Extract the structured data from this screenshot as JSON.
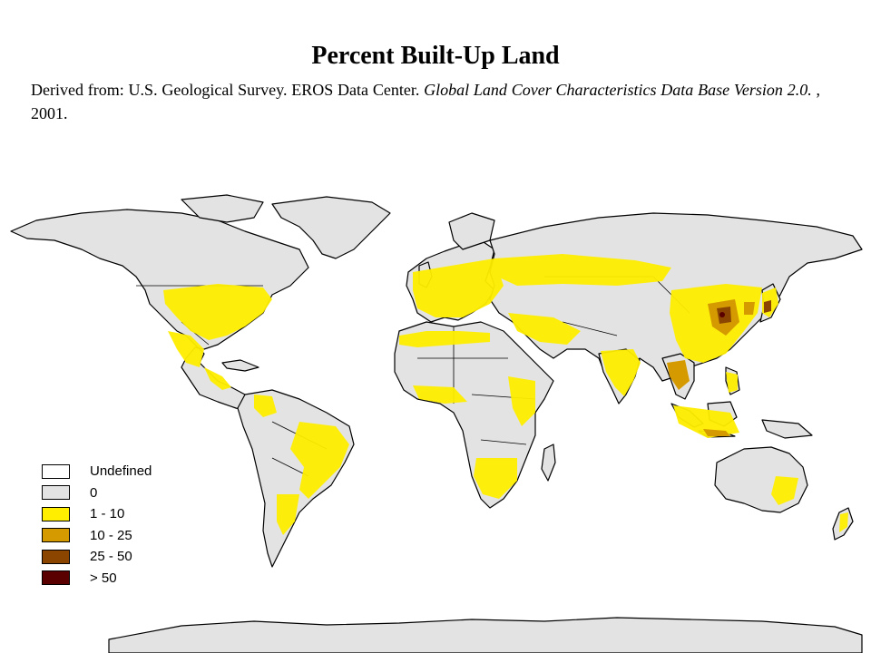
{
  "title": "Percent Built-Up Land",
  "source": {
    "prefix": "Derived from: U.S. Geological Survey. EROS Data Center. ",
    "italic": "Global Land Cover Characteristics Data Base Version 2.0.",
    "suffix": " , 2001."
  },
  "colors": {
    "ocean": "#ffffff",
    "land_zero": "#e3e3e3",
    "border": "#000000",
    "low": "#ffee00",
    "mid": "#d49a00",
    "high": "#8b4500",
    "max": "#5a0000"
  },
  "legend": {
    "items": [
      {
        "label": "Undefined",
        "color": "#ffffff"
      },
      {
        "label": "0",
        "color": "#e3e3e3"
      },
      {
        "label": "1 - 10",
        "color": "#ffee00"
      },
      {
        "label": "10 - 25",
        "color": "#d49a00"
      },
      {
        "label": "25 - 50",
        "color": "#8b4500"
      },
      {
        "label": "> 50",
        "color": "#5a0000"
      }
    ]
  }
}
